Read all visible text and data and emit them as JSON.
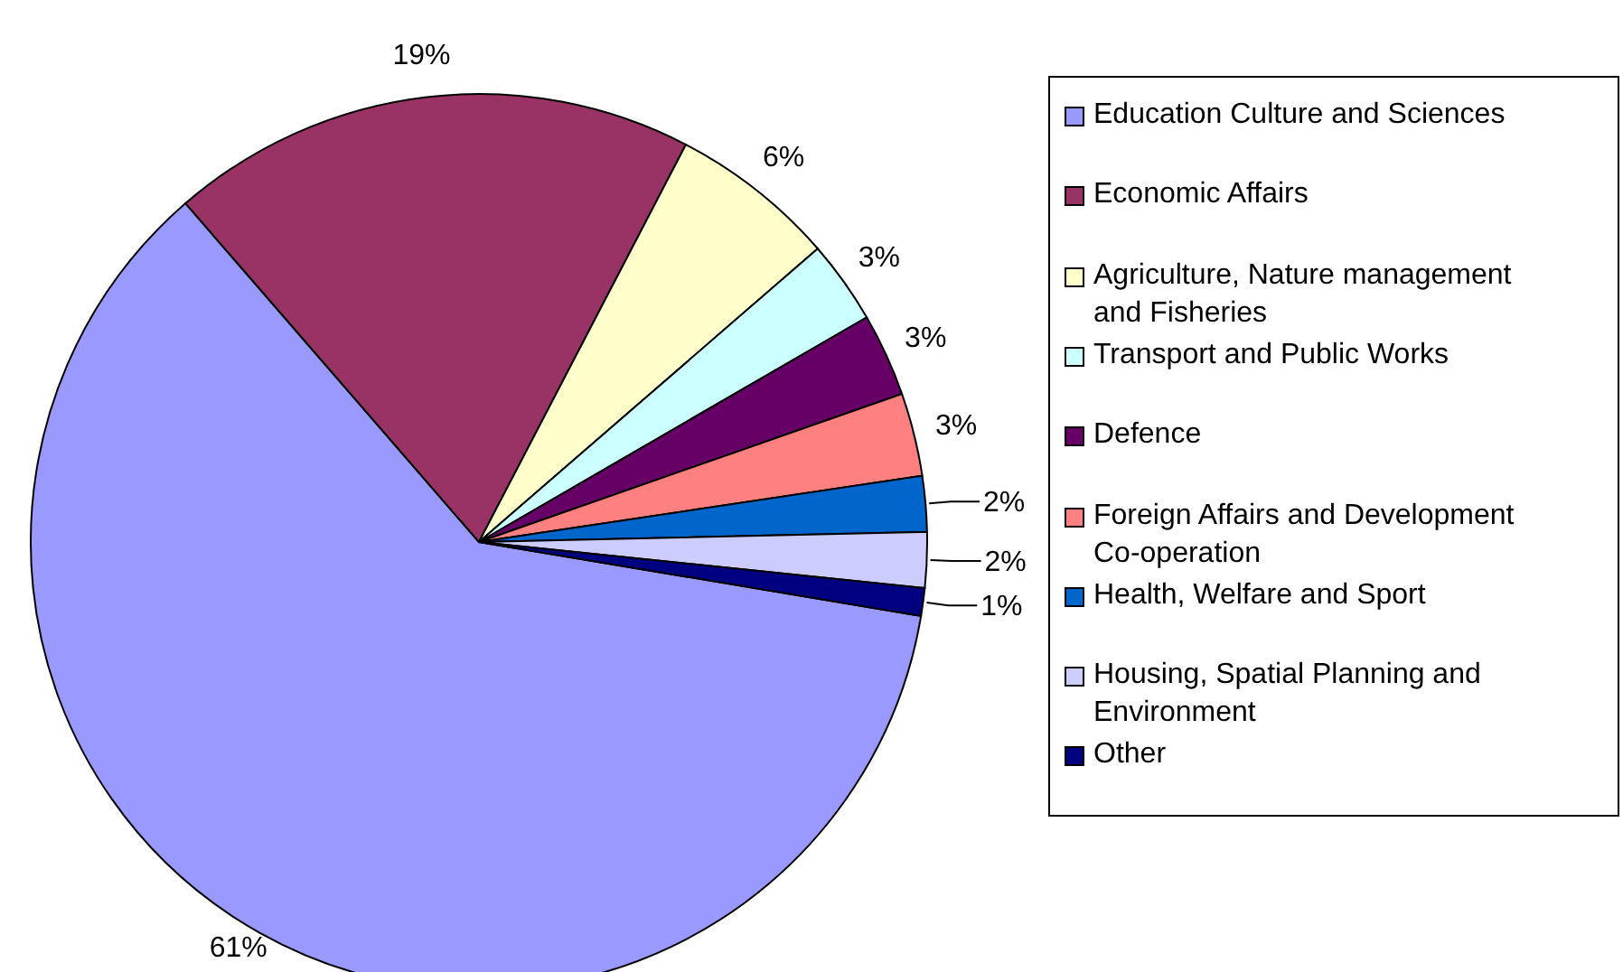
{
  "chart_data": {
    "type": "pie",
    "categories": [
      "Education Culture and Sciences",
      "Economic Affairs",
      "Agriculture, Nature management and Fisheries",
      "Transport and Public Works",
      "Defence",
      "Foreign Affairs and Development Co-operation",
      "Health, Welfare and Sport",
      "Housing, Spatial Planning and Environment",
      "Other"
    ],
    "values": [
      61,
      19,
      6,
      3,
      3,
      3,
      2,
      2,
      1
    ],
    "value_labels": [
      "61%",
      "19%",
      "6%",
      "3%",
      "3%",
      "3%",
      "2%",
      "2%",
      "1%"
    ],
    "colors": [
      "#9999ff",
      "#993366",
      "#ffffcc",
      "#ccffff",
      "#660066",
      "#ff8080",
      "#0066cc",
      "#ccccff",
      "#000080"
    ],
    "legend": "right"
  }
}
